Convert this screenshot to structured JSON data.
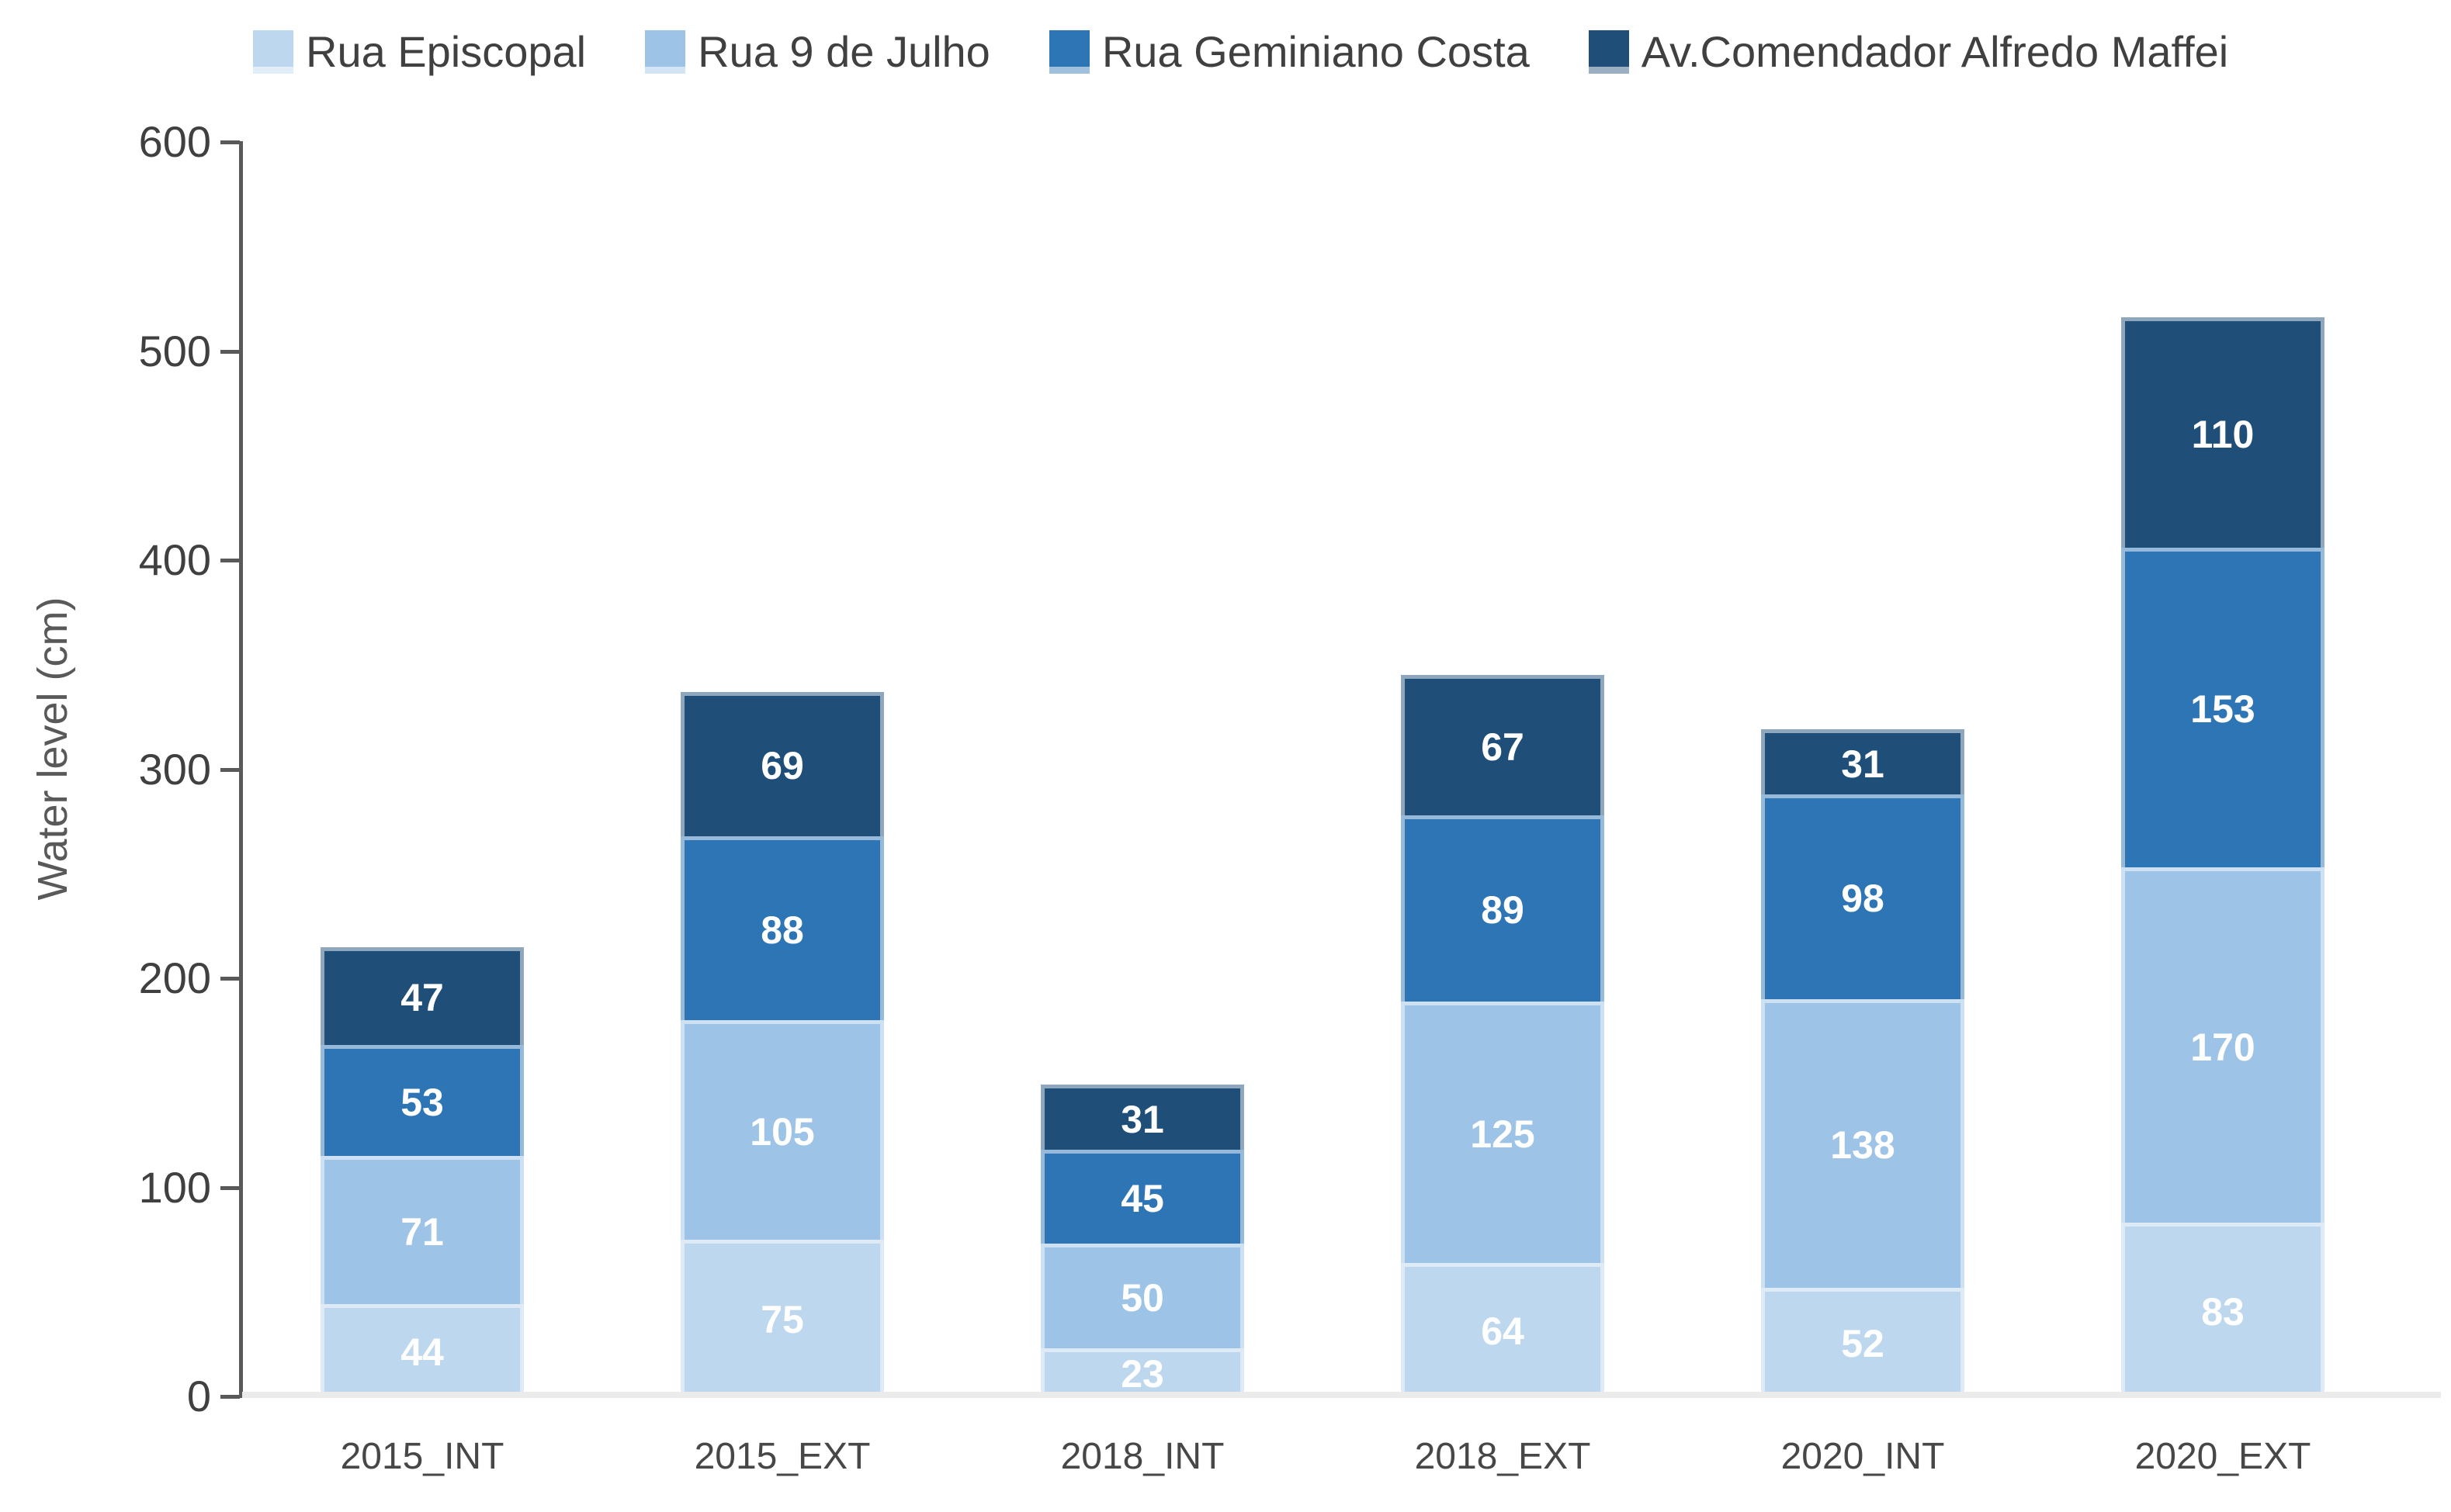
{
  "chart_data": {
    "type": "bar",
    "stacked": true,
    "title": "",
    "categories": [
      "2015_INT",
      "2015_EXT",
      "2018_INT",
      "2018_EXT",
      "2020_INT",
      "2020_EXT"
    ],
    "series": [
      {
        "name": "Rua Episcopal",
        "color": "#BDD7EE",
        "values": [
          44,
          75,
          23,
          64,
          52,
          83
        ]
      },
      {
        "name": "Rua 9 de Julho",
        "color": "#9DC3E6",
        "values": [
          71,
          105,
          50,
          125,
          138,
          170
        ]
      },
      {
        "name": "Rua Geminiano Costa",
        "color": "#2E75B6",
        "values": [
          53,
          88,
          45,
          89,
          98,
          153
        ]
      },
      {
        "name": "Av.Comendador Alfredo Maffei",
        "color": "#1F4E79",
        "values": [
          47,
          69,
          31,
          67,
          31,
          110
        ]
      }
    ],
    "totals": [
      215,
      337,
      149,
      345,
      319,
      516
    ],
    "xlabel": "",
    "ylabel": "Water level (cm)",
    "ylim": [
      0,
      600
    ],
    "yticks": [
      0,
      100,
      200,
      300,
      400,
      500,
      600
    ],
    "grid": false,
    "legend_position": "top",
    "value_labels": "inside-center"
  },
  "style": {
    "background": "#FFFFFF",
    "axis_color": "#595959",
    "tick_label_color": "#404040",
    "category_label_color": "#474747",
    "legend_text_color": "#404040",
    "value_label_color": "#FFFFFF",
    "baseline_color": "#EBEBEB"
  }
}
